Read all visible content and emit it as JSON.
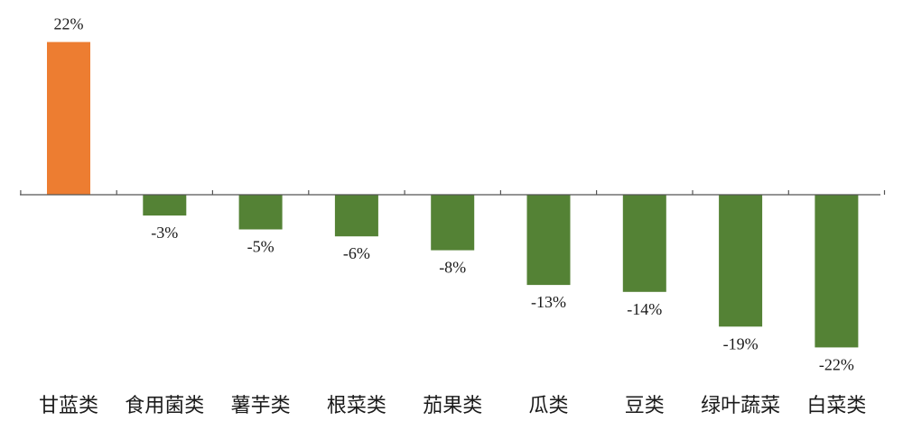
{
  "chart_data": {
    "type": "bar",
    "title": "",
    "xlabel": "",
    "ylabel": "",
    "ylim": [
      -24,
      24
    ],
    "grid": false,
    "legend": "none",
    "categories": [
      "甘蓝类",
      "食用菌类",
      "薯芋类",
      "根菜类",
      "茄果类",
      "瓜类",
      "豆类",
      "绿叶蔬菜",
      "白菜类"
    ],
    "series": [
      {
        "values": [
          22,
          -3,
          -5,
          -6,
          -8,
          -13,
          -14,
          -19,
          -22
        ]
      }
    ],
    "data_labels": [
      "22%",
      "-3%",
      "-5%",
      "-6%",
      "-8%",
      "-13%",
      "-14%",
      "-19%",
      "-22%"
    ],
    "colors": {
      "positive": "#ED7D31",
      "negative": "#548235",
      "axis": "#555555"
    }
  }
}
